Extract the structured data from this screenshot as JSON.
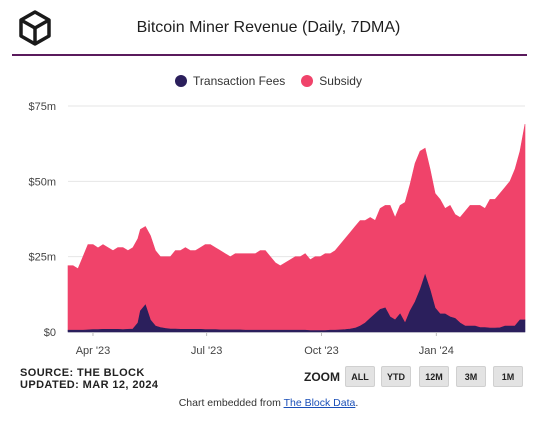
{
  "header": {
    "title": "Bitcoin Miner Revenue (Daily, 7DMA)"
  },
  "footer": {
    "source": "SOURCE: THE BLOCK",
    "updated": "UPDATED: MAR 12, 2024",
    "zoom_label": "ZOOM",
    "zoom_buttons": [
      "ALL",
      "YTD",
      "12M",
      "3M",
      "1M"
    ],
    "embed_prefix": "Chart embedded from ",
    "embed_link": "The Block Data",
    "embed_suffix": "."
  },
  "colors": {
    "fees": "#2b1f5c",
    "subsidy": "#f0436a",
    "rule": "#5a1a5c"
  },
  "icons": {
    "logo": "cube-logo-icon"
  },
  "chart_data": {
    "type": "area",
    "stacked": true,
    "title": "Bitcoin Miner Revenue (Daily, 7DMA)",
    "unit": "$M",
    "ylim": [
      0,
      75
    ],
    "y_ticks": [
      0,
      25,
      50,
      75
    ],
    "y_tick_labels": [
      "$0",
      "$25m",
      "$50m",
      "$75m"
    ],
    "x_tick_labels": [
      "Apr '23",
      "Jul '23",
      "Oct '23",
      "Jan '24"
    ],
    "x_ticks": [
      "2023-04-01",
      "2023-07-01",
      "2023-10-01",
      "2024-01-01"
    ],
    "legend_position": "top-center",
    "grid": true,
    "x": [
      "2023-03-12",
      "2023-03-16",
      "2023-03-20",
      "2023-03-24",
      "2023-03-28",
      "2023-04-01",
      "2023-04-05",
      "2023-04-09",
      "2023-04-13",
      "2023-04-17",
      "2023-04-21",
      "2023-04-25",
      "2023-04-29",
      "2023-05-03",
      "2023-05-07",
      "2023-05-09",
      "2023-05-13",
      "2023-05-17",
      "2023-05-21",
      "2023-05-25",
      "2023-05-29",
      "2023-06-02",
      "2023-06-06",
      "2023-06-10",
      "2023-06-14",
      "2023-06-18",
      "2023-06-22",
      "2023-06-26",
      "2023-06-30",
      "2023-07-04",
      "2023-07-08",
      "2023-07-12",
      "2023-07-16",
      "2023-07-20",
      "2023-07-24",
      "2023-07-28",
      "2023-08-01",
      "2023-08-05",
      "2023-08-09",
      "2023-08-13",
      "2023-08-17",
      "2023-08-21",
      "2023-08-25",
      "2023-08-29",
      "2023-09-02",
      "2023-09-06",
      "2023-09-10",
      "2023-09-14",
      "2023-09-18",
      "2023-09-22",
      "2023-09-26",
      "2023-09-30",
      "2023-10-04",
      "2023-10-08",
      "2023-10-12",
      "2023-10-16",
      "2023-10-20",
      "2023-10-24",
      "2023-10-28",
      "2023-11-01",
      "2023-11-05",
      "2023-11-09",
      "2023-11-13",
      "2023-11-17",
      "2023-11-21",
      "2023-11-25",
      "2023-11-29",
      "2023-12-03",
      "2023-12-07",
      "2023-12-11",
      "2023-12-15",
      "2023-12-19",
      "2023-12-23",
      "2023-12-27",
      "2023-12-31",
      "2024-01-04",
      "2024-01-08",
      "2024-01-12",
      "2024-01-16",
      "2024-01-20",
      "2024-01-24",
      "2024-01-28",
      "2024-02-01",
      "2024-02-05",
      "2024-02-09",
      "2024-02-13",
      "2024-02-17",
      "2024-02-21",
      "2024-02-25",
      "2024-02-29",
      "2024-03-04",
      "2024-03-08",
      "2024-03-12"
    ],
    "series": [
      {
        "name": "Transaction Fees",
        "values": [
          0.6,
          0.6,
          0.6,
          0.6,
          0.7,
          0.8,
          0.8,
          0.9,
          0.9,
          0.9,
          0.9,
          0.8,
          0.9,
          1.0,
          3.0,
          7.0,
          9.0,
          4.0,
          2.0,
          1.5,
          1.2,
          1.0,
          1.0,
          0.9,
          0.9,
          0.9,
          0.9,
          0.9,
          0.8,
          0.8,
          0.8,
          0.7,
          0.7,
          0.7,
          0.7,
          0.7,
          0.6,
          0.6,
          0.6,
          0.6,
          0.6,
          0.6,
          0.6,
          0.6,
          0.6,
          0.6,
          0.6,
          0.6,
          0.6,
          0.5,
          0.5,
          0.5,
          0.5,
          0.6,
          0.6,
          0.7,
          0.8,
          1.0,
          1.3,
          2.0,
          3.0,
          4.5,
          6.0,
          7.5,
          8.0,
          5.0,
          4.0,
          6.0,
          3.0,
          7.0,
          10.0,
          14.0,
          19.0,
          14.0,
          8.0,
          6.0,
          6.0,
          5.0,
          4.5,
          3.0,
          2.0,
          2.0,
          2.0,
          1.5,
          1.5,
          1.3,
          1.3,
          1.4,
          2.0,
          2.0,
          2.0,
          4.0,
          4.0
        ]
      },
      {
        "name": "Subsidy",
        "values": [
          21.4,
          21.4,
          20.4,
          24.4,
          28.3,
          28.2,
          27.1,
          28.1,
          27.1,
          26.1,
          27.1,
          27.2,
          26.1,
          27.0,
          28.0,
          27.0,
          26.0,
          28.0,
          25.0,
          23.5,
          23.8,
          24.0,
          26.0,
          26.1,
          27.1,
          26.1,
          26.1,
          27.1,
          28.2,
          28.2,
          27.2,
          26.3,
          25.3,
          24.3,
          25.3,
          25.3,
          25.4,
          25.4,
          25.4,
          26.4,
          26.4,
          24.4,
          22.4,
          21.4,
          22.4,
          23.4,
          24.4,
          24.4,
          25.4,
          23.5,
          24.5,
          24.5,
          25.5,
          25.4,
          26.4,
          28.3,
          30.2,
          32.0,
          33.7,
          35.0,
          34.0,
          33.5,
          31.0,
          33.5,
          34.0,
          37.0,
          34.0,
          36.0,
          40.0,
          42.0,
          46.0,
          46.0,
          42.0,
          40.0,
          38.0,
          38.0,
          35.0,
          37.0,
          34.5,
          35.0,
          38.0,
          40.0,
          40.0,
          40.5,
          39.5,
          42.7,
          42.7,
          44.6,
          46.0,
          48.0,
          52.0,
          56.0,
          65.0
        ]
      }
    ]
  }
}
